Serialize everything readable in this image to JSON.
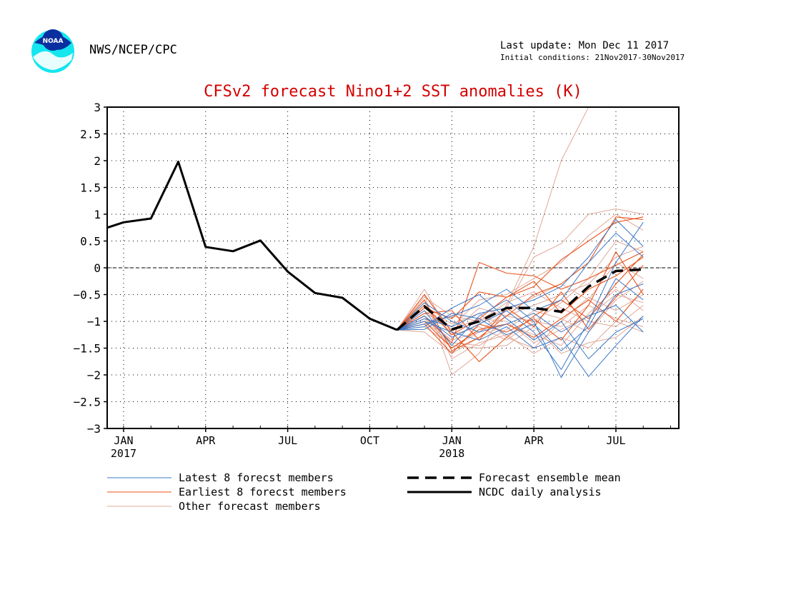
{
  "header": {
    "org": "NWS/NCEP/CPC",
    "logo_text": "NOAA",
    "last_update": "Last update: Mon Dec 11 2017",
    "initial_conditions": "Initial conditions: 21Nov2017-30Nov2017"
  },
  "colors": {
    "title": "#d40000",
    "latest": "#3a78c9",
    "earliest": "#e8541e",
    "other": "#e0a898",
    "analysis": "#000000",
    "mean": "#000000"
  },
  "chart_data": {
    "type": "line",
    "title": "CFSv2 forecast Nino1+2 SST anomalies (K)",
    "xlabel": "",
    "ylabel": "",
    "ylim": [
      -3,
      3
    ],
    "yticks": [
      "3",
      "2.5",
      "2",
      "1.5",
      "1",
      "0.5",
      "0",
      "−0.5",
      "−1",
      "−1.5",
      "−2",
      "−2.5",
      "−3"
    ],
    "xticks": [
      {
        "month": "JAN",
        "year": "2017",
        "t": 1
      },
      {
        "month": "APR",
        "year": "",
        "t": 4
      },
      {
        "month": "JUL",
        "year": "",
        "t": 7
      },
      {
        "month": "OCT",
        "year": "",
        "t": 10
      },
      {
        "month": "JAN",
        "year": "2018",
        "t": 13
      },
      {
        "month": "APR",
        "year": "",
        "t": 16
      },
      {
        "month": "JUL",
        "year": "",
        "t": 19
      }
    ],
    "xlim": [
      0.4,
      21.3
    ],
    "grid": true,
    "zero_line": true,
    "legend": {
      "placement": "bottom",
      "entries": [
        {
          "label": "Latest 8 forecst members",
          "style": "latest"
        },
        {
          "label": "Earliest 8 forecst members",
          "style": "earliest"
        },
        {
          "label": "Other forecast members",
          "style": "other"
        },
        {
          "label": "Forecast ensemble mean",
          "style": "mean"
        },
        {
          "label": "NCDC daily analysis",
          "style": "analysis"
        }
      ]
    },
    "series": [
      {
        "name": "NCDC daily analysis",
        "style": "analysis",
        "x": [
          0.4,
          1,
          2,
          3,
          4,
          5,
          6,
          7,
          8,
          9,
          10,
          11
        ],
        "y": [
          0.75,
          0.85,
          0.92,
          1.98,
          0.39,
          0.31,
          0.51,
          -0.07,
          -0.47,
          -0.56,
          -0.95,
          -1.16
        ]
      },
      {
        "name": "Forecast ensemble mean",
        "style": "mean",
        "x": [
          11,
          12,
          13,
          14,
          15,
          16,
          17,
          18,
          19,
          20
        ],
        "y": [
          -1.16,
          -0.72,
          -1.15,
          -1.0,
          -0.75,
          -0.75,
          -0.82,
          -0.35,
          -0.06,
          -0.03
        ]
      },
      {
        "style": "latest",
        "x": [
          11,
          12,
          13,
          14,
          15,
          16,
          17,
          18,
          19,
          20
        ],
        "y": [
          -1.16,
          -0.9,
          -1.3,
          -1.05,
          -0.8,
          -1.2,
          -1.9,
          -1.0,
          0.1,
          0.85
        ]
      },
      {
        "style": "latest",
        "x": [
          11,
          12,
          13,
          14,
          15,
          16,
          17,
          18,
          19,
          20
        ],
        "y": [
          -1.16,
          -1.1,
          -0.75,
          -0.5,
          -0.95,
          -1.35,
          -1.0,
          -1.7,
          -1.2,
          -0.95
        ]
      },
      {
        "style": "latest",
        "x": [
          11,
          12,
          13,
          14,
          15,
          16,
          17,
          18,
          19,
          20
        ],
        "y": [
          -1.16,
          -0.8,
          -1.45,
          -0.9,
          -0.6,
          -1.0,
          -2.05,
          -1.2,
          -0.5,
          -0.3
        ]
      },
      {
        "style": "latest",
        "x": [
          11,
          12,
          13,
          14,
          15,
          16,
          17,
          18,
          19,
          20
        ],
        "y": [
          -1.16,
          -1.0,
          -1.2,
          -1.35,
          -1.1,
          -1.5,
          -1.3,
          -2.03,
          -1.45,
          -0.9
        ]
      },
      {
        "style": "latest",
        "x": [
          11,
          12,
          13,
          14,
          15,
          16,
          17,
          18,
          19,
          20
        ],
        "y": [
          -1.16,
          -1.05,
          -0.9,
          -0.7,
          -0.4,
          -0.8,
          -0.6,
          0.1,
          0.65,
          0.2
        ]
      },
      {
        "style": "latest",
        "x": [
          11,
          12,
          13,
          14,
          15,
          16,
          17,
          18,
          19,
          20
        ],
        "y": [
          -1.16,
          -0.65,
          -1.0,
          -1.2,
          -1.05,
          -0.85,
          -1.2,
          -0.9,
          -0.7,
          -1.2
        ]
      },
      {
        "style": "latest",
        "x": [
          11,
          12,
          13,
          14,
          15,
          16,
          17,
          18,
          19,
          20
        ],
        "y": [
          -1.16,
          -0.95,
          -1.1,
          -0.85,
          -0.75,
          -0.6,
          -0.35,
          0.2,
          0.9,
          0.4
        ]
      },
      {
        "style": "latest",
        "x": [
          11,
          12,
          13,
          14,
          15,
          16,
          17,
          18,
          19,
          20
        ],
        "y": [
          -1.16,
          -1.15,
          -0.85,
          -0.95,
          -1.25,
          -1.05,
          -1.55,
          -1.1,
          -0.2,
          -0.6
        ]
      },
      {
        "style": "earliest",
        "x": [
          11,
          12,
          13,
          14,
          15,
          16,
          17,
          18,
          19,
          20
        ],
        "y": [
          -1.16,
          -0.6,
          -1.55,
          -1.3,
          -0.9,
          -0.5,
          -0.3,
          0.1,
          0.95,
          0.9
        ]
      },
      {
        "style": "earliest",
        "x": [
          11,
          12,
          13,
          14,
          15,
          16,
          17,
          18,
          19,
          20
        ],
        "y": [
          -1.16,
          -0.9,
          -1.4,
          0.1,
          -0.1,
          -0.15,
          -0.4,
          -0.2,
          0.05,
          0.3
        ]
      },
      {
        "style": "earliest",
        "x": [
          11,
          12,
          13,
          14,
          15,
          16,
          17,
          18,
          19,
          20
        ],
        "y": [
          -1.16,
          -0.5,
          -1.2,
          -1.75,
          -1.3,
          -0.9,
          -0.6,
          -0.95,
          -0.3,
          0.25
        ]
      },
      {
        "style": "earliest",
        "x": [
          11,
          12,
          13,
          14,
          15,
          16,
          17,
          18,
          19,
          20
        ],
        "y": [
          -1.16,
          -0.75,
          -0.95,
          -0.45,
          -0.55,
          -0.35,
          0.15,
          0.5,
          0.85,
          0.95
        ]
      },
      {
        "style": "earliest",
        "x": [
          11,
          12,
          13,
          14,
          15,
          16,
          17,
          18,
          19,
          20
        ],
        "y": [
          -1.16,
          -1.0,
          -1.5,
          -1.15,
          -1.05,
          -1.3,
          -0.95,
          -0.6,
          -1.0,
          -0.4
        ]
      },
      {
        "style": "earliest",
        "x": [
          11,
          12,
          13,
          14,
          15,
          16,
          17,
          18,
          19,
          20
        ],
        "y": [
          -1.16,
          -0.85,
          -0.8,
          -1.35,
          -0.75,
          -1.1,
          -0.45,
          -1.15,
          -0.55,
          0.05
        ]
      },
      {
        "style": "earliest",
        "x": [
          11,
          12,
          13,
          14,
          15,
          16,
          17,
          18,
          19,
          20
        ],
        "y": [
          -1.16,
          -0.7,
          -1.25,
          -0.95,
          -0.55,
          -0.25,
          -0.85,
          -0.4,
          -0.15,
          0.2
        ]
      },
      {
        "style": "earliest",
        "x": [
          11,
          12,
          13,
          14,
          15,
          16,
          17,
          18,
          19,
          20
        ],
        "y": [
          -1.16,
          -1.05,
          -1.6,
          -1.05,
          -1.2,
          -0.95,
          -1.35,
          -0.7,
          0.3,
          -0.5
        ]
      },
      {
        "style": "other",
        "x": [
          11,
          12,
          13,
          14,
          15,
          16,
          17,
          18,
          19,
          20
        ],
        "y": [
          -1.16,
          -0.5,
          -2.0,
          -1.6,
          -0.7,
          0.4,
          2.0,
          3.0,
          3.0,
          3.0
        ]
      },
      {
        "style": "other",
        "x": [
          11,
          12,
          13,
          14,
          15,
          16,
          17,
          18,
          19,
          20
        ],
        "y": [
          -1.16,
          -0.4,
          -1.3,
          -1.05,
          -0.75,
          0.2,
          0.45,
          1.0,
          1.1,
          1.0
        ]
      },
      {
        "style": "other",
        "x": [
          11,
          12,
          13,
          14,
          15,
          16,
          17,
          18,
          19,
          20
        ],
        "y": [
          -1.16,
          -0.6,
          -1.7,
          -1.4,
          -1.25,
          -1.6,
          -1.3,
          -1.5,
          -1.0,
          -1.2
        ]
      },
      {
        "style": "other",
        "x": [
          11,
          12,
          13,
          14,
          15,
          16,
          17,
          18,
          19,
          20
        ],
        "y": [
          -1.16,
          -0.85,
          -1.1,
          -0.6,
          -0.5,
          -0.2,
          0.1,
          0.6,
          1.0,
          0.7
        ]
      },
      {
        "style": "other",
        "x": [
          11,
          12,
          13,
          14,
          15,
          16,
          17,
          18,
          19,
          20
        ],
        "y": [
          -1.16,
          -1.1,
          -1.45,
          -1.5,
          -1.45,
          -1.1,
          -1.6,
          -1.4,
          -1.3,
          -0.9
        ]
      },
      {
        "style": "other",
        "x": [
          11,
          12,
          13,
          14,
          15,
          16,
          17,
          18,
          19,
          20
        ],
        "y": [
          -1.16,
          -0.7,
          -1.05,
          -0.85,
          -1.3,
          -1.5,
          -1.0,
          -0.55,
          -0.8,
          -0.5
        ]
      },
      {
        "style": "other",
        "x": [
          11,
          12,
          13,
          14,
          15,
          16,
          17,
          18,
          19,
          20
        ],
        "y": [
          -1.16,
          -0.95,
          -1.35,
          -1.2,
          -0.9,
          -0.7,
          -0.5,
          -0.3,
          0.2,
          0.4
        ]
      },
      {
        "style": "other",
        "x": [
          11,
          12,
          13,
          14,
          15,
          16,
          17,
          18,
          19,
          20
        ],
        "y": [
          -1.16,
          -0.55,
          -0.9,
          -1.0,
          -0.65,
          -0.45,
          -0.75,
          -1.0,
          -1.1,
          -0.7
        ]
      },
      {
        "style": "other",
        "x": [
          11,
          12,
          13,
          14,
          15,
          16,
          17,
          18,
          19,
          20
        ],
        "y": [
          -1.16,
          -1.2,
          -1.6,
          -1.3,
          -1.05,
          -1.25,
          -1.45,
          -0.85,
          -0.4,
          -0.8
        ]
      },
      {
        "style": "other",
        "x": [
          11,
          12,
          13,
          14,
          15,
          16,
          17,
          18,
          19,
          20
        ],
        "y": [
          -1.16,
          -0.8,
          -1.2,
          -0.75,
          -0.9,
          -1.0,
          -0.65,
          -0.2,
          0.5,
          0.3
        ]
      },
      {
        "style": "other",
        "x": [
          11,
          12,
          13,
          14,
          15,
          16,
          17,
          18,
          19,
          20
        ],
        "y": [
          -1.16,
          -1.0,
          -1.4,
          -1.45,
          -1.15,
          -0.8,
          -0.95,
          -1.2,
          -0.6,
          -0.25
        ]
      },
      {
        "style": "other",
        "x": [
          11,
          12,
          13,
          14,
          15,
          16,
          17,
          18,
          19,
          20
        ],
        "y": [
          -1.16,
          -0.65,
          -1.25,
          -1.1,
          -1.35,
          -1.0,
          -1.1,
          -0.7,
          -0.95,
          -1.1
        ]
      },
      {
        "style": "other",
        "x": [
          11,
          12,
          13,
          14,
          15,
          16,
          17,
          18,
          19,
          20
        ],
        "y": [
          -1.16,
          -0.9,
          -1.5,
          -1.2,
          -0.8,
          -0.55,
          -0.3,
          -0.6,
          0.1,
          -0.2
        ]
      },
      {
        "style": "other",
        "x": [
          11,
          12,
          13,
          14,
          15,
          16,
          17,
          18,
          19,
          20
        ],
        "y": [
          -1.16,
          -0.75,
          -1.15,
          -0.95,
          -1.0,
          -1.4,
          -1.15,
          -0.9,
          -0.5,
          -0.65
        ]
      }
    ]
  }
}
